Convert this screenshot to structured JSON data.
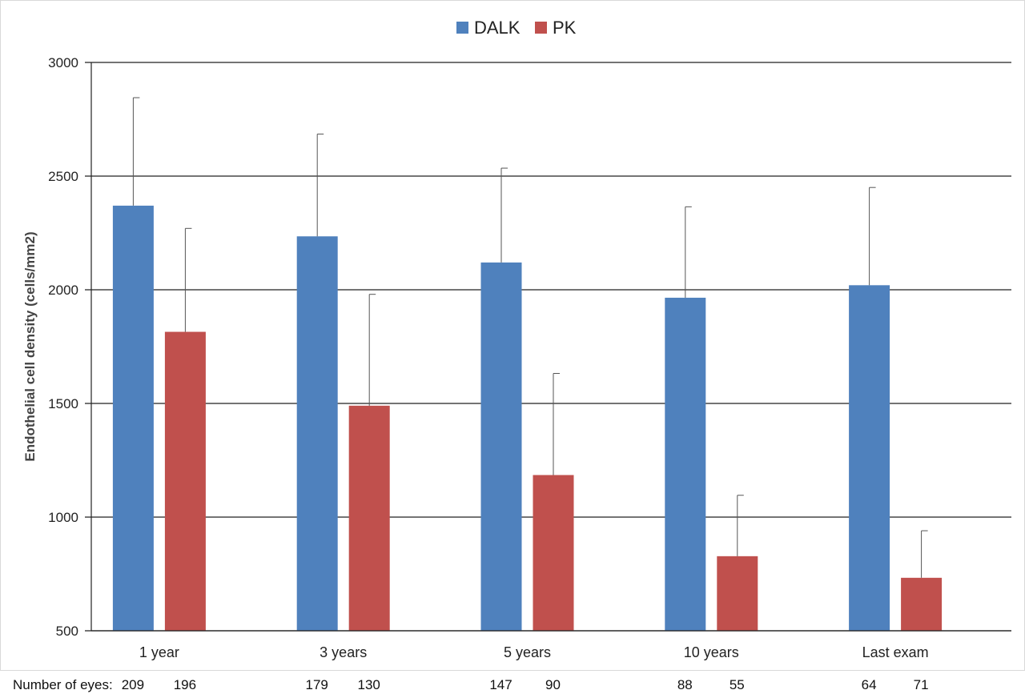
{
  "chart_data": {
    "type": "bar",
    "title": "",
    "xlabel": "",
    "ylabel": "Endothelial cell density (cells/mm2)",
    "ylim": [
      500,
      3000
    ],
    "yticks": [
      "500",
      "1000",
      "1500",
      "2000",
      "2500",
      "3000"
    ],
    "grid": true,
    "legend_position": "top-center",
    "categories": [
      "1 year",
      "3 years",
      "5 years",
      "10 years",
      "Last exam"
    ],
    "series": [
      {
        "name": "DALK",
        "color": "#4f81bd",
        "values": [
          2370,
          2235,
          2120,
          1965,
          2020
        ],
        "error_upper": [
          2845,
          2685,
          2535,
          2365,
          2450
        ]
      },
      {
        "name": "PK",
        "color": "#c0504d",
        "values": [
          1815,
          1490,
          1185,
          828,
          733
        ],
        "error_upper": [
          2270,
          1980,
          1632,
          1096,
          940
        ]
      }
    ],
    "eyes_label": "Number of eyes:",
    "eyes_counts": [
      [
        "209",
        "196"
      ],
      [
        "179",
        "130"
      ],
      [
        "147",
        "90"
      ],
      [
        "88",
        "55"
      ],
      [
        "64",
        "71"
      ]
    ]
  }
}
